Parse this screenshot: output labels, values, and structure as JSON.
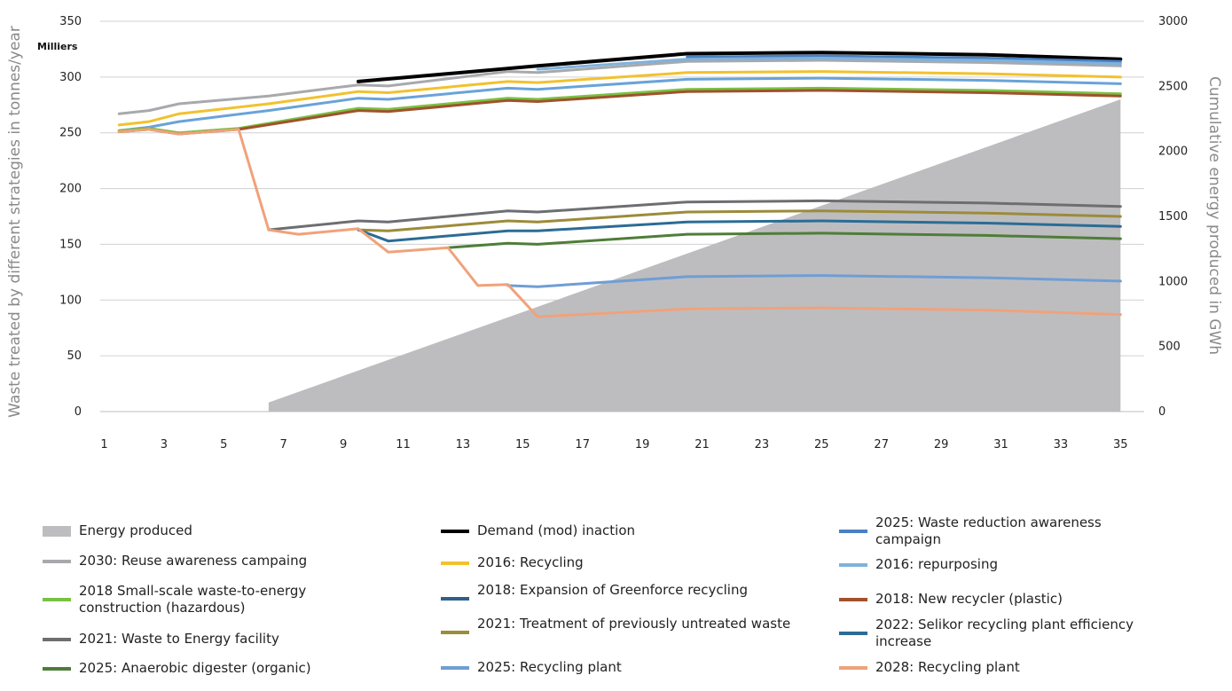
{
  "chart_data": {
    "type": "line",
    "y_left_label": "Waste treated by different strategies in tonnes/year",
    "y_left_unit": "Milliers",
    "y_right_label": "Cumulative energy produced in GWh",
    "ylim_left": [
      0,
      350
    ],
    "ylim_right": [
      0,
      3000
    ],
    "y_left_ticks": [
      "0",
      "50",
      "100",
      "150",
      "200",
      "250",
      "300",
      "350"
    ],
    "y_right_ticks": [
      "0",
      "500",
      "1000",
      "1500",
      "2000",
      "2500",
      "3000"
    ],
    "x_ticks": [
      "1",
      "3",
      "5",
      "7",
      "9",
      "11",
      "13",
      "15",
      "17",
      "19",
      "21",
      "23",
      "25",
      "27",
      "29",
      "31",
      "33",
      "35"
    ],
    "area": {
      "name": "Energy produced",
      "color": "#bdbdc0",
      "axis": "right",
      "x_start": 6.5,
      "x_end": 35,
      "y_start": 70,
      "y_end": 2400
    },
    "series": [
      {
        "name": "Demand (mod) inaction",
        "color": "#000000",
        "width": 4,
        "points": [
          [
            9.5,
            296
          ],
          [
            15.5,
            310
          ],
          [
            20.5,
            321
          ],
          [
            25,
            322
          ],
          [
            30.5,
            320
          ],
          [
            35,
            316
          ]
        ]
      },
      {
        "name": "2030: Reuse awareness campaing",
        "color": "#a7a9ac",
        "width": 3,
        "points": [
          [
            1.5,
            267
          ],
          [
            2.5,
            270
          ],
          [
            3.5,
            276
          ],
          [
            6.5,
            283
          ],
          [
            9.5,
            293
          ],
          [
            10.5,
            292
          ],
          [
            14.5,
            305
          ],
          [
            15.5,
            304
          ],
          [
            20.5,
            314
          ],
          [
            25,
            315
          ],
          [
            30.5,
            313
          ],
          [
            35,
            310
          ]
        ]
      },
      {
        "name": "2025: Waste reduction awareness campaign",
        "color": "#4a7fc1",
        "width": 3,
        "points": [
          [
            20.5,
            318
          ],
          [
            25,
            319
          ],
          [
            30.5,
            317
          ],
          [
            35,
            314
          ]
        ]
      },
      {
        "name": "2016: repurposing",
        "color": "#7fb2dd",
        "width": 3,
        "points": [
          [
            15.5,
            307
          ],
          [
            20.5,
            316
          ],
          [
            25,
            317
          ],
          [
            30.5,
            315
          ],
          [
            35,
            312
          ]
        ]
      },
      {
        "name": "2016: Recycling",
        "color": "#f2c12e",
        "width": 3,
        "points": [
          [
            1.5,
            257
          ],
          [
            2.5,
            260
          ],
          [
            3.5,
            267
          ],
          [
            6.5,
            276
          ],
          [
            9.5,
            287
          ],
          [
            10.5,
            286
          ],
          [
            14.5,
            296
          ],
          [
            15.5,
            295
          ],
          [
            20.5,
            304
          ],
          [
            25,
            305
          ],
          [
            30.5,
            303
          ],
          [
            35,
            300
          ]
        ]
      },
      {
        "name": "2016: repurposing",
        "color": "#69a3d8",
        "width": 3,
        "points": [
          [
            1.5,
            252
          ],
          [
            2.5,
            255
          ],
          [
            3.5,
            260
          ],
          [
            6.5,
            270
          ],
          [
            9.5,
            281
          ],
          [
            10.5,
            280
          ],
          [
            14.5,
            290
          ],
          [
            15.5,
            289
          ],
          [
            20.5,
            298
          ],
          [
            25,
            299
          ],
          [
            30.5,
            297
          ],
          [
            35,
            294
          ]
        ]
      },
      {
        "name": "2018 Small-scale waste-to-energy construction (hazardous)",
        "color": "#7ac143",
        "width": 3,
        "points": [
          [
            1.5,
            252
          ],
          [
            2.5,
            254
          ],
          [
            3.5,
            250
          ],
          [
            5.5,
            254
          ],
          [
            9.5,
            272
          ],
          [
            10.5,
            271
          ],
          [
            14.5,
            281
          ],
          [
            15.5,
            280
          ],
          [
            20.5,
            289
          ],
          [
            25,
            290
          ],
          [
            30.5,
            288
          ],
          [
            35,
            285
          ]
        ]
      },
      {
        "name": "2018: New recycler (plastic)",
        "color": "#a0522d",
        "width": 3,
        "points": [
          [
            1.5,
            251
          ],
          [
            2.5,
            253
          ],
          [
            3.5,
            249
          ],
          [
            5.5,
            253
          ],
          [
            9.5,
            270
          ],
          [
            10.5,
            269
          ],
          [
            14.5,
            279
          ],
          [
            15.5,
            278
          ],
          [
            20.5,
            287
          ],
          [
            25,
            288
          ],
          [
            30.5,
            286
          ],
          [
            35,
            283
          ]
        ]
      },
      {
        "name": "2021: Waste to Energy facility",
        "color": "#6d6e71",
        "width": 3,
        "points": [
          [
            6.5,
            163
          ],
          [
            9.5,
            171
          ],
          [
            10.5,
            170
          ],
          [
            14.5,
            180
          ],
          [
            15.5,
            179
          ],
          [
            20.5,
            188
          ],
          [
            25,
            189
          ],
          [
            30.5,
            187
          ],
          [
            35,
            184
          ]
        ]
      },
      {
        "name": "2021: Treatment of previously untreated waste",
        "color": "#9c8b3a",
        "width": 3,
        "points": [
          [
            9.5,
            163
          ],
          [
            10.5,
            162
          ],
          [
            14.5,
            171
          ],
          [
            15.5,
            170
          ],
          [
            20.5,
            179
          ],
          [
            25,
            180
          ],
          [
            30.5,
            178
          ],
          [
            35,
            175
          ]
        ]
      },
      {
        "name": "2022: Selikor recycling plant efficiency increase",
        "color": "#2b6c95",
        "width": 3,
        "points": [
          [
            9.5,
            163
          ],
          [
            10.5,
            153
          ],
          [
            14.5,
            162
          ],
          [
            15.5,
            162
          ],
          [
            20.5,
            170
          ],
          [
            25,
            171
          ],
          [
            30.5,
            169
          ],
          [
            35,
            166
          ]
        ]
      },
      {
        "name": "2025: Anaerobic digester (organic)",
        "color": "#4f7d39",
        "width": 3,
        "points": [
          [
            12.5,
            147
          ],
          [
            14.5,
            151
          ],
          [
            15.5,
            150
          ],
          [
            20.5,
            159
          ],
          [
            25,
            160
          ],
          [
            30.5,
            158
          ],
          [
            35,
            155
          ]
        ]
      },
      {
        "name": "2025: Recycling plant",
        "color": "#6f9ed4",
        "width": 3,
        "points": [
          [
            14.5,
            113
          ],
          [
            15.5,
            112
          ],
          [
            20.5,
            121
          ],
          [
            25,
            122
          ],
          [
            30.5,
            120
          ],
          [
            35,
            117
          ]
        ]
      },
      {
        "name": "2028: Recycling plant",
        "color": "#f0a27a",
        "width": 3,
        "points": [
          [
            1.5,
            251
          ],
          [
            2.5,
            253
          ],
          [
            3.5,
            249
          ],
          [
            5.5,
            253
          ],
          [
            6.5,
            163
          ],
          [
            7.5,
            159
          ],
          [
            9.5,
            164
          ],
          [
            10.5,
            143
          ],
          [
            12.5,
            147
          ],
          [
            13.5,
            113
          ],
          [
            14.5,
            114
          ],
          [
            15.5,
            85
          ],
          [
            20.5,
            92
          ],
          [
            25,
            93
          ],
          [
            30.5,
            91
          ],
          [
            35,
            87
          ]
        ]
      }
    ],
    "legend": [
      {
        "label": "Energy produced",
        "color": "#bdbdc0",
        "kind": "area"
      },
      {
        "label": "Demand (mod) inaction",
        "color": "#000000",
        "kind": "line"
      },
      {
        "label": "2025: Waste reduction awareness campaign",
        "color": "#4a7fc1",
        "kind": "line"
      },
      {
        "label": "2030: Reuse awareness campaing",
        "color": "#a7a9ac",
        "kind": "line"
      },
      {
        "label": "2016: Recycling",
        "color": "#f2c12e",
        "kind": "line"
      },
      {
        "label": "2016: repurposing",
        "color": "#7fb2dd",
        "kind": "line"
      },
      {
        "label": "2018 Small-scale waste-to-energy construction (hazardous)",
        "color": "#7ac143",
        "kind": "line"
      },
      {
        "label": "2018: Expansion of Greenforce recycling",
        "color": "#2f5f8a",
        "kind": "line"
      },
      {
        "label": "2018: New recycler (plastic)",
        "color": "#a0522d",
        "kind": "line"
      },
      {
        "label": "2021: Waste to Energy facility",
        "color": "#6d6e71",
        "kind": "line"
      },
      {
        "label": "2021: Treatment of previously untreated waste",
        "color": "#9c8b3a",
        "kind": "line"
      },
      {
        "label": "2022: Selikor recycling plant efficiency increase",
        "color": "#2b6c95",
        "kind": "line"
      },
      {
        "label": "2025: Anaerobic digester (organic)",
        "color": "#4f7d39",
        "kind": "line"
      },
      {
        "label": "2025: Recycling plant",
        "color": "#6f9ed4",
        "kind": "line"
      },
      {
        "label": "2028: Recycling plant",
        "color": "#f0a27a",
        "kind": "line"
      }
    ]
  }
}
